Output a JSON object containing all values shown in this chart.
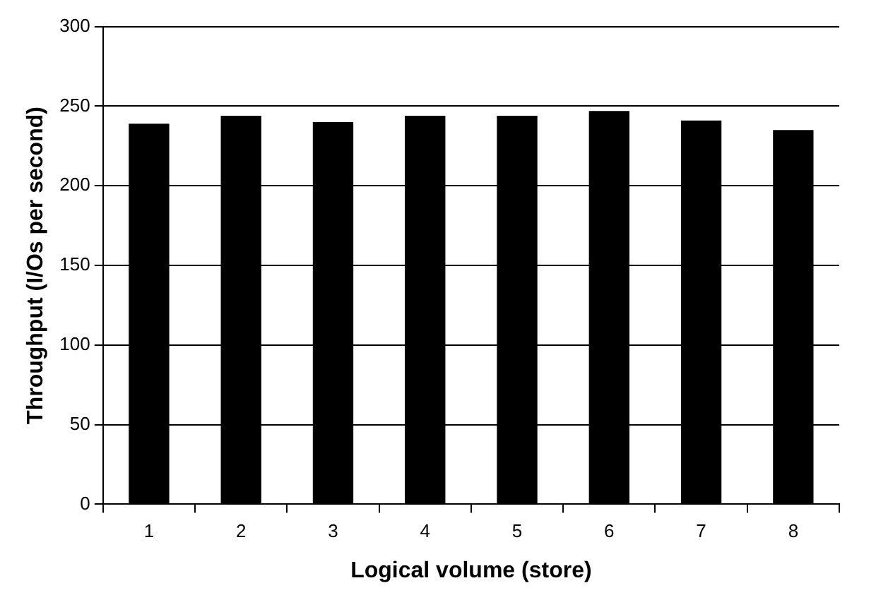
{
  "chart_data": {
    "type": "bar",
    "xlabel": "Logical volume (store)",
    "ylabel": "Throughput (I/Os per second)",
    "categories": [
      "1",
      "2",
      "3",
      "4",
      "5",
      "6",
      "7",
      "8"
    ],
    "values": [
      239,
      244,
      240,
      244,
      244,
      247,
      241,
      235
    ],
    "color": "#000000",
    "ylim": [
      0,
      300
    ],
    "yticks": [
      0,
      50,
      100,
      150,
      200,
      250,
      300
    ],
    "grid": "y",
    "legend": false
  }
}
